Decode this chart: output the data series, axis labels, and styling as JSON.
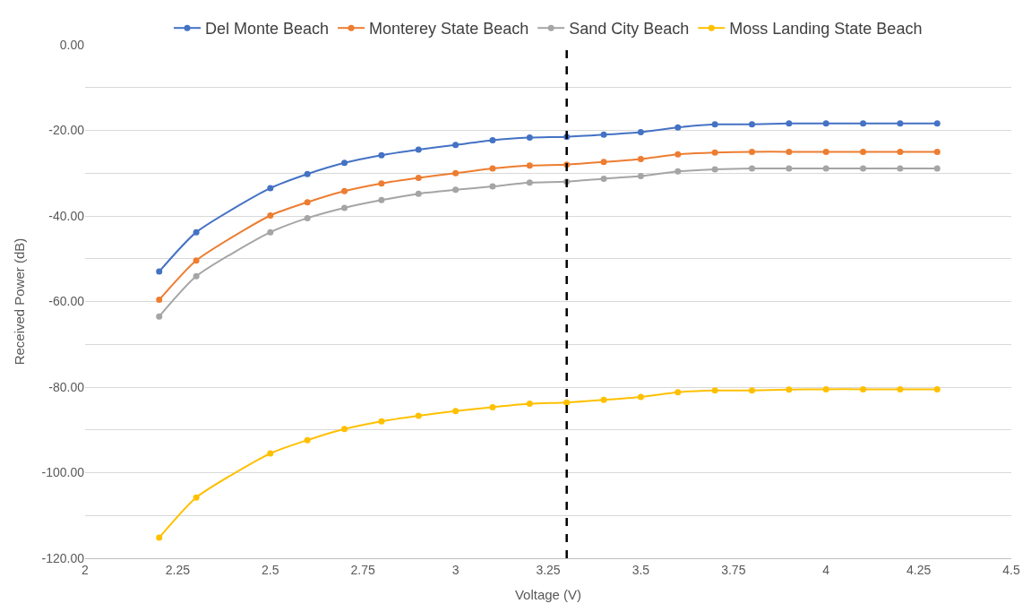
{
  "chart_data": {
    "type": "line",
    "xlabel": "Voltage (V)",
    "ylabel": "Received Power (dB)",
    "x": [
      2.2,
      2.3,
      2.5,
      2.6,
      2.7,
      2.8,
      2.9,
      3.0,
      3.1,
      3.2,
      3.3,
      3.4,
      3.5,
      3.6,
      3.7,
      3.8,
      3.9,
      4.0,
      4.1,
      4.2,
      4.3
    ],
    "series": [
      {
        "name": "Del Monte Beach",
        "color": "#4472c4",
        "values": [
          -53.0,
          -43.8,
          -33.5,
          -30.2,
          -27.6,
          -25.8,
          -24.5,
          -23.4,
          -22.3,
          -21.7,
          -21.5,
          -21.0,
          -20.4,
          -19.3,
          -18.6,
          -18.6,
          -18.4,
          -18.4,
          -18.4,
          -18.4,
          -18.4
        ]
      },
      {
        "name": "Monterey State Beach",
        "color": "#ed7d31",
        "values": [
          -59.6,
          -50.4,
          -39.9,
          -36.8,
          -34.2,
          -32.4,
          -31.1,
          -30.0,
          -28.9,
          -28.2,
          -28.0,
          -27.4,
          -26.7,
          -25.6,
          -25.2,
          -25.0,
          -25.0,
          -25.0,
          -25.0,
          -25.0,
          -25.0
        ]
      },
      {
        "name": "Sand City Beach",
        "color": "#a5a5a5",
        "values": [
          -63.5,
          -54.1,
          -43.8,
          -40.5,
          -38.1,
          -36.3,
          -34.8,
          -33.9,
          -33.1,
          -32.2,
          -32.0,
          -31.3,
          -30.7,
          -29.6,
          -29.1,
          -28.9,
          -28.9,
          -28.9,
          -28.9,
          -28.9,
          -28.9
        ]
      },
      {
        "name": "Moss Landing State Beach",
        "color": "#ffc000",
        "values": [
          -115.2,
          -105.8,
          -95.5,
          -92.4,
          -89.8,
          -88.0,
          -86.7,
          -85.6,
          -84.7,
          -83.9,
          -83.6,
          -83.0,
          -82.3,
          -81.2,
          -80.8,
          -80.8,
          -80.6,
          -80.5,
          -80.5,
          -80.5,
          -80.5
        ]
      }
    ],
    "xlim": [
      2,
      4.5
    ],
    "xticks": [
      2,
      2.25,
      2.5,
      2.75,
      3,
      3.25,
      3.5,
      3.75,
      4,
      4.25,
      4.5
    ],
    "ylim": [
      -120,
      0
    ],
    "yticks": [
      {
        "value": -120,
        "label": "-120.00"
      },
      {
        "value": -110,
        "label": null
      },
      {
        "value": -100,
        "label": "-100.00"
      },
      {
        "value": -90,
        "label": null
      },
      {
        "value": -80,
        "label": "-80.00"
      },
      {
        "value": -70,
        "label": null
      },
      {
        "value": -60,
        "label": "-60.00"
      },
      {
        "value": -50,
        "label": null
      },
      {
        "value": -40,
        "label": "-40.00"
      },
      {
        "value": -30,
        "label": null
      },
      {
        "value": -20,
        "label": "-20.00"
      },
      {
        "value": -10,
        "label": null
      },
      {
        "value": 0,
        "label": "0.00"
      }
    ],
    "ref_lines": [
      {
        "axis": "x",
        "value": 3.3,
        "color": "#000000",
        "line_style": "dashed"
      }
    ],
    "grid": "y",
    "legend": "top",
    "marker": "circle",
    "line_style": "solid"
  }
}
